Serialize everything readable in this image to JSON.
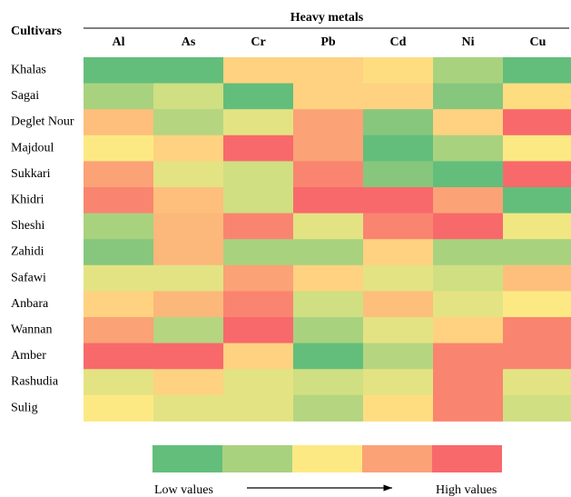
{
  "chart_data": {
    "type": "heatmap",
    "row_title": "Cultivars",
    "column_group_title": "Heavy metals",
    "columns": [
      "Al",
      "As",
      "Cr",
      "Pb",
      "Cd",
      "Ni",
      "Cu"
    ],
    "rows": [
      "Khalas",
      "Sagai",
      "Deglet Nour",
      "Majdoul",
      "Sukkari",
      "Khidri",
      "Sheshi",
      "Zahidi",
      "Safawi",
      "Anbara",
      "Wannan",
      "Amber",
      "Rashudia",
      "Sulig"
    ],
    "cell_colors": [
      [
        "#63be7b",
        "#63be7b",
        "#fed280",
        "#fed280",
        "#fedd81",
        "#a9d27f",
        "#63be7b"
      ],
      [
        "#a9d27f",
        "#cfdf82",
        "#63be7b",
        "#fed280",
        "#fed280",
        "#86c77d",
        "#fedd81"
      ],
      [
        "#fdbf7b",
        "#b5d580",
        "#e3e383",
        "#fba276",
        "#86c77d",
        "#fed280",
        "#f8696b"
      ],
      [
        "#fde983",
        "#fed280",
        "#f8696b",
        "#fba276",
        "#63be7b",
        "#a9d27f",
        "#fde983"
      ],
      [
        "#fba276",
        "#e3e383",
        "#cfdf82",
        "#f98570",
        "#86c77d",
        "#63be7b",
        "#f8696b"
      ],
      [
        "#f98570",
        "#fdbf7b",
        "#cfdf82",
        "#f8696b",
        "#f8696b",
        "#fba276",
        "#63be7b"
      ],
      [
        "#a9d27f",
        "#fcb77a",
        "#f98570",
        "#e3e383",
        "#f98570",
        "#f8696b",
        "#f0e783"
      ],
      [
        "#86c77d",
        "#fcb77a",
        "#a9d27f",
        "#a9d27f",
        "#fed280",
        "#a9d27f",
        "#a9d27f"
      ],
      [
        "#e3e383",
        "#e3e383",
        "#fba276",
        "#fed280",
        "#e3e383",
        "#cfdf82",
        "#fdbf7b"
      ],
      [
        "#fed280",
        "#fcb77a",
        "#f98570",
        "#cfdf82",
        "#fdbf7b",
        "#e3e383",
        "#fde983"
      ],
      [
        "#fba276",
        "#b5d580",
        "#f8696b",
        "#a9d27f",
        "#e3e383",
        "#fed280",
        "#f98570"
      ],
      [
        "#f8696b",
        "#f8696b",
        "#fed280",
        "#63be7b",
        "#b5d580",
        "#f98570",
        "#f98570"
      ],
      [
        "#e3e383",
        "#fed280",
        "#e3e383",
        "#cfdf82",
        "#e3e383",
        "#f98570",
        "#e3e383"
      ],
      [
        "#fde983",
        "#e3e383",
        "#e3e383",
        "#b5d580",
        "#fedd81",
        "#f98570",
        "#cfdf82"
      ]
    ],
    "legend": {
      "colors": [
        "#63be7b",
        "#a9d27f",
        "#fde983",
        "#fba276",
        "#f8696b"
      ],
      "low_label": "Low values",
      "high_label": "High values"
    }
  }
}
